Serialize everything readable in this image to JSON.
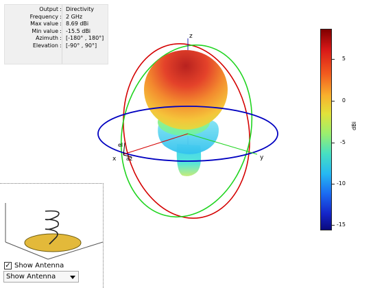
{
  "info": {
    "rows": [
      {
        "key": "Output",
        "value": "Directivity"
      },
      {
        "key": "Frequency",
        "value": "2 GHz"
      },
      {
        "key": "Max value",
        "value": "8.69 dBi"
      },
      {
        "key": "Min value",
        "value": "-15.5 dBi"
      },
      {
        "key": "Azimuth",
        "value": "[-180° , 180°]"
      },
      {
        "key": "Elevation",
        "value": "[-90° , 90°]"
      }
    ],
    "separator": ":"
  },
  "axes": {
    "x": "x",
    "y": "y",
    "z": "z",
    "el": "el",
    "az": "az"
  },
  "colorbar": {
    "ticks": [
      "5",
      "0",
      "-5",
      "-10",
      "-15"
    ],
    "unit": "dBi",
    "range": [
      -15.5,
      8.69
    ]
  },
  "controls": {
    "checkbox_label": "Show Antenna",
    "checkbox_checked": true,
    "checkmark": "✓",
    "dropdown_value": "Show Antenna"
  },
  "colors": {
    "elevation_circle_red": "#d40000",
    "elevation_circle_green": "#1fd41f",
    "azimuth_circle_blue": "#0000c0",
    "antenna_ground": "#e3b93a"
  }
}
